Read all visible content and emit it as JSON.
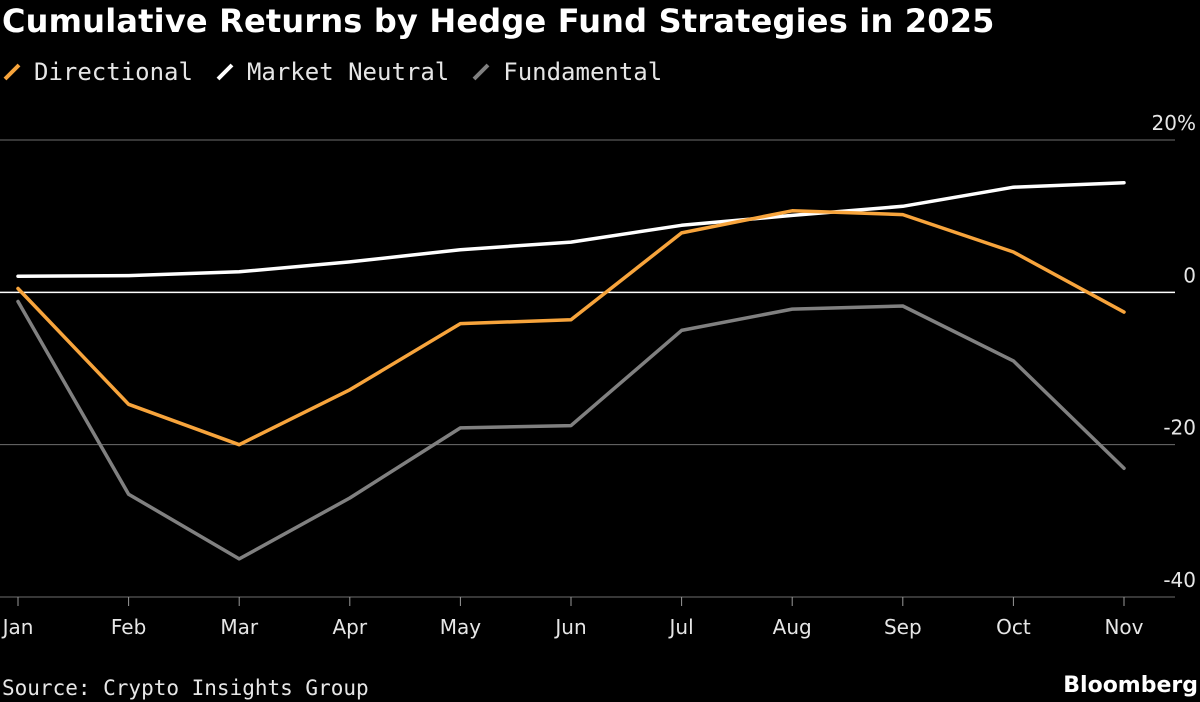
{
  "title": "Cumulative Returns by Hedge Fund Strategies in 2025",
  "source": "Source: Crypto Insights Group",
  "brand": "Bloomberg",
  "chart_data": {
    "type": "line",
    "title": "Cumulative Returns by Hedge Fund Strategies in 2025",
    "xlabel": "",
    "ylabel": "",
    "categories": [
      "Jan",
      "Feb",
      "Mar",
      "Apr",
      "May",
      "Jun",
      "Jul",
      "Aug",
      "Sep",
      "Oct",
      "Nov"
    ],
    "ylim": [
      -40,
      20
    ],
    "y_ticks": [
      20,
      0,
      -20,
      -40
    ],
    "y_tick_labels": [
      "20%",
      "0",
      "-20",
      "-40"
    ],
    "grid": true,
    "legend_position": "top-left",
    "series": [
      {
        "name": "Directional",
        "color": "#f7a43c",
        "values": [
          0.5,
          -14.7,
          -20,
          -12.8,
          -4.1,
          -3.6,
          7.8,
          10.7,
          10.2,
          5.3,
          -2.6
        ]
      },
      {
        "name": "Market Neutral",
        "color": "#ffffff",
        "values": [
          2.1,
          2.2,
          2.7,
          4,
          5.6,
          6.6,
          8.8,
          10.1,
          11.3,
          13.8,
          14.4
        ]
      },
      {
        "name": "Fundamental",
        "color": "#808080",
        "values": [
          -1.2,
          -26.5,
          -35,
          -27,
          -17.8,
          -17.5,
          -5,
          -2.2,
          -1.8,
          -9,
          -23.1
        ]
      }
    ]
  }
}
